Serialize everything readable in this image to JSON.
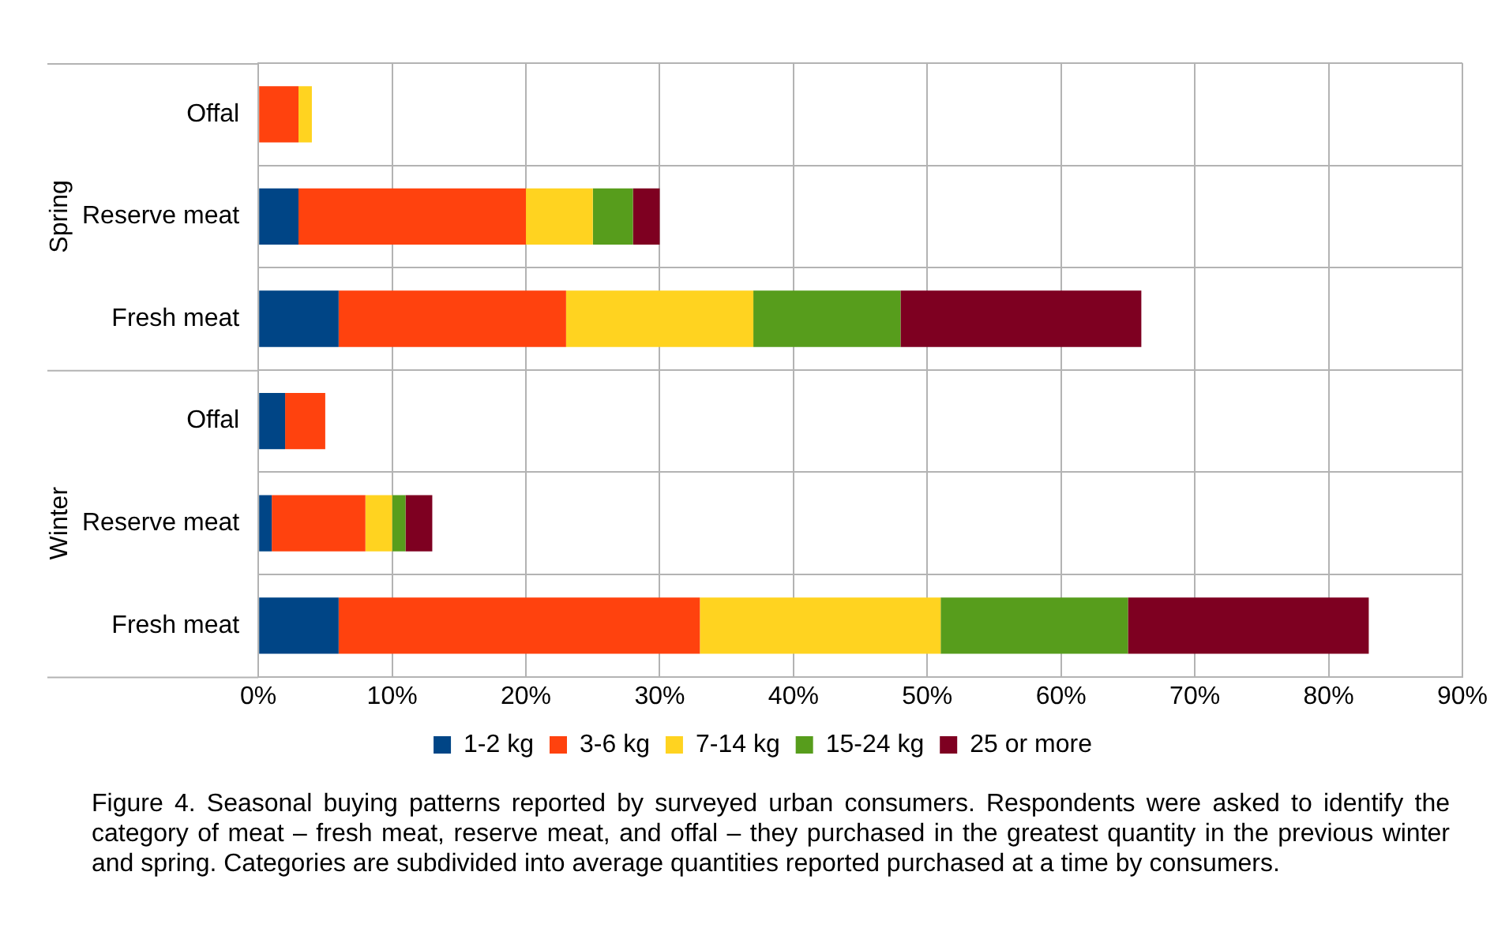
{
  "chart_data": {
    "type": "bar",
    "orientation": "horizontal",
    "stacked": true,
    "categories": [
      "Offal",
      "Reserve meat",
      "Fresh meat",
      "Offal",
      "Reserve meat",
      "Fresh meat"
    ],
    "series": [
      {
        "name": "1-2 kg",
        "color": "#004586",
        "values": [
          0,
          3,
          6,
          2,
          1,
          6
        ]
      },
      {
        "name": "3-6 kg",
        "color": "#ff420e",
        "values": [
          3,
          17,
          17,
          3,
          7,
          27
        ]
      },
      {
        "name": "7-14 kg",
        "color": "#ffd320",
        "values": [
          1,
          5,
          14,
          0,
          2,
          18
        ]
      },
      {
        "name": "15-24 kg",
        "color": "#579d1c",
        "values": [
          0,
          3,
          11,
          0,
          1,
          14
        ]
      },
      {
        "name": "25 or more",
        "color": "#7e0021",
        "values": [
          0,
          2,
          18,
          0,
          2,
          18
        ]
      }
    ],
    "xlim": [
      0,
      90
    ],
    "xticks": [
      {
        "value": 0,
        "label": "0%"
      },
      {
        "value": 10,
        "label": "10%"
      },
      {
        "value": 20,
        "label": "20%"
      },
      {
        "value": 30,
        "label": "30%"
      },
      {
        "value": 40,
        "label": "40%"
      },
      {
        "value": 50,
        "label": "50%"
      },
      {
        "value": 60,
        "label": "60%"
      },
      {
        "value": 70,
        "label": "70%"
      },
      {
        "value": 80,
        "label": "80%"
      },
      {
        "value": 90,
        "label": "90%"
      }
    ],
    "grid": true,
    "legend": "bottom",
    "annotations": [
      "Spring",
      "Winter",
      "Figure 4. Seasonal buying patterns reported by surveyed urban consumers. Respondents were asked to identify the category of meat – fresh meat, reserve meat, and offal – they purchased in the greatest quantity in the previous winter and spring. Categories are subdivided into average quantities reported purchased at a time by consumers."
    ]
  }
}
